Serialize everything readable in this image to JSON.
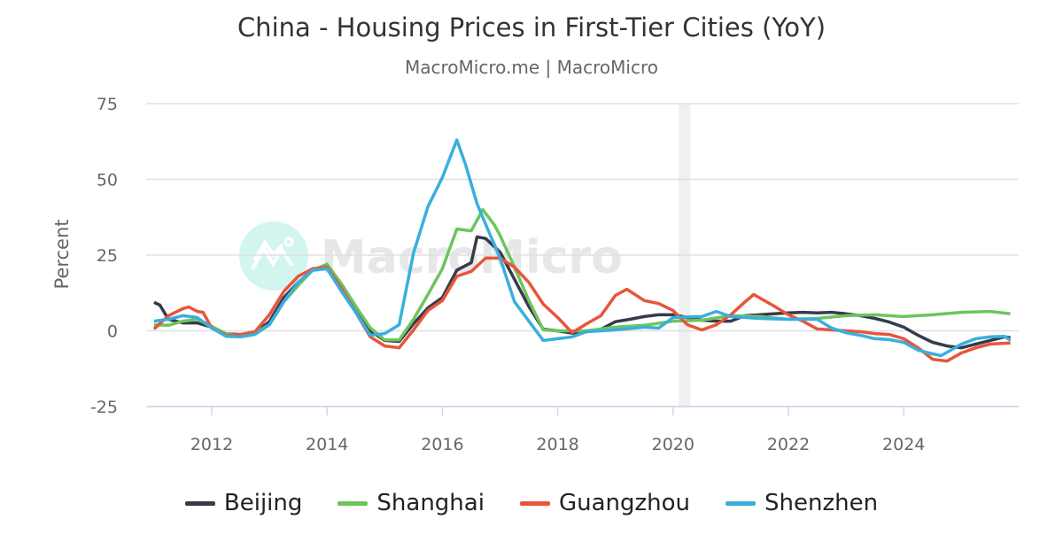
{
  "chart_data": {
    "type": "line",
    "title": "China - Housing Prices in First-Tier Cities (YoY)",
    "subtitle": "MacroMicro.me | MacroMicro",
    "watermark": "MacroMicro",
    "ylabel": "Percent",
    "xlabel": "",
    "ylim": [
      -25,
      75
    ],
    "xlim": [
      2011.0,
      2026.0
    ],
    "yticks": [
      "-25",
      "0",
      "25",
      "50",
      "75"
    ],
    "xticks": [
      "2012",
      "2014",
      "2016",
      "2018",
      "2020",
      "2022",
      "2024"
    ],
    "grid": true,
    "legend_position": "bottom",
    "shaded_region": [
      2020.1,
      2020.3
    ],
    "series": [
      {
        "name": "Beijing",
        "color": "#363b4b",
        "points": [
          [
            2011.0,
            9.4
          ],
          [
            2011.1,
            8.5
          ],
          [
            2011.25,
            3.8
          ],
          [
            2011.5,
            2.6
          ],
          [
            2011.75,
            2.6
          ],
          [
            2012.0,
            1.2
          ],
          [
            2012.25,
            -1
          ],
          [
            2012.5,
            -1.2
          ],
          [
            2012.75,
            -0.6
          ],
          [
            2013.0,
            3
          ],
          [
            2013.25,
            11
          ],
          [
            2013.5,
            16
          ],
          [
            2013.75,
            20
          ],
          [
            2014.0,
            21
          ],
          [
            2014.25,
            14
          ],
          [
            2014.5,
            7
          ],
          [
            2014.75,
            0
          ],
          [
            2015.0,
            -3.2
          ],
          [
            2015.25,
            -3.5
          ],
          [
            2015.5,
            2.3
          ],
          [
            2015.75,
            7.6
          ],
          [
            2016.0,
            11
          ],
          [
            2016.25,
            20
          ],
          [
            2016.5,
            22.5
          ],
          [
            2016.6,
            31
          ],
          [
            2016.75,
            30.5
          ],
          [
            2017.0,
            26
          ],
          [
            2017.25,
            17
          ],
          [
            2017.5,
            8
          ],
          [
            2017.75,
            0.5
          ],
          [
            2018.0,
            0
          ],
          [
            2018.25,
            -0.8
          ],
          [
            2018.5,
            -0.3
          ],
          [
            2018.75,
            0.5
          ],
          [
            2019.0,
            3
          ],
          [
            2019.25,
            3.8
          ],
          [
            2019.5,
            4.7
          ],
          [
            2019.75,
            5.3
          ],
          [
            2020.0,
            5.3
          ],
          [
            2020.25,
            4.4
          ],
          [
            2020.5,
            3.5
          ],
          [
            2020.75,
            3.2
          ],
          [
            2021.0,
            3.2
          ],
          [
            2021.25,
            5
          ],
          [
            2021.5,
            5.3
          ],
          [
            2021.75,
            5.6
          ],
          [
            2022.0,
            5.9
          ],
          [
            2022.25,
            6.1
          ],
          [
            2022.5,
            5.9
          ],
          [
            2022.75,
            6.1
          ],
          [
            2023.0,
            5.6
          ],
          [
            2023.25,
            5
          ],
          [
            2023.5,
            4.1
          ],
          [
            2023.75,
            2.9
          ],
          [
            2024.0,
            1.2
          ],
          [
            2024.25,
            -1.5
          ],
          [
            2024.5,
            -3.8
          ],
          [
            2024.75,
            -5
          ],
          [
            2025.0,
            -5.6
          ],
          [
            2025.25,
            -4.4
          ],
          [
            2025.5,
            -3.2
          ],
          [
            2025.75,
            -2
          ],
          [
            2025.85,
            -2.3
          ]
        ]
      },
      {
        "name": "Shanghai",
        "color": "#6cc55d",
        "points": [
          [
            2011.0,
            2
          ],
          [
            2011.25,
            1.8
          ],
          [
            2011.5,
            3.2
          ],
          [
            2011.75,
            3.8
          ],
          [
            2012.0,
            1.5
          ],
          [
            2012.25,
            -1
          ],
          [
            2012.5,
            -1.5
          ],
          [
            2012.75,
            -0.6
          ],
          [
            2013.0,
            2
          ],
          [
            2013.25,
            9.6
          ],
          [
            2013.5,
            15
          ],
          [
            2013.75,
            20
          ],
          [
            2014.0,
            22
          ],
          [
            2014.25,
            15.5
          ],
          [
            2014.5,
            8
          ],
          [
            2014.75,
            1
          ],
          [
            2015.0,
            -3
          ],
          [
            2015.25,
            -3
          ],
          [
            2015.5,
            3.8
          ],
          [
            2015.75,
            12
          ],
          [
            2016.0,
            20.5
          ],
          [
            2016.25,
            33.6
          ],
          [
            2016.5,
            33
          ],
          [
            2016.7,
            40
          ],
          [
            2016.9,
            35
          ],
          [
            2017.0,
            31.5
          ],
          [
            2017.25,
            21
          ],
          [
            2017.5,
            10
          ],
          [
            2017.75,
            0.3
          ],
          [
            2018.0,
            0
          ],
          [
            2018.5,
            0
          ],
          [
            2019.0,
            1.2
          ],
          [
            2019.5,
            1.8
          ],
          [
            2020.0,
            3.2
          ],
          [
            2020.5,
            3.5
          ],
          [
            2021.0,
            5
          ],
          [
            2021.5,
            4.7
          ],
          [
            2022.0,
            3.8
          ],
          [
            2022.5,
            4.1
          ],
          [
            2023.0,
            5
          ],
          [
            2023.5,
            5.3
          ],
          [
            2024.0,
            4.7
          ],
          [
            2024.5,
            5.3
          ],
          [
            2025.0,
            6.1
          ],
          [
            2025.5,
            6.4
          ],
          [
            2025.85,
            5.6
          ]
        ]
      },
      {
        "name": "Guangzhou",
        "color": "#e8553a",
        "points": [
          [
            2011.0,
            0.6
          ],
          [
            2011.25,
            5
          ],
          [
            2011.5,
            7.3
          ],
          [
            2011.6,
            7.9
          ],
          [
            2011.75,
            6.4
          ],
          [
            2011.85,
            6.1
          ],
          [
            2012.0,
            0.9
          ],
          [
            2012.25,
            -1.5
          ],
          [
            2012.5,
            -1.2
          ],
          [
            2012.75,
            -0.3
          ],
          [
            2013.0,
            5.3
          ],
          [
            2013.25,
            13
          ],
          [
            2013.5,
            18
          ],
          [
            2013.75,
            20.5
          ],
          [
            2014.0,
            21
          ],
          [
            2014.25,
            14
          ],
          [
            2014.5,
            6
          ],
          [
            2014.75,
            -2
          ],
          [
            2015.0,
            -5
          ],
          [
            2015.25,
            -5.6
          ],
          [
            2015.5,
            0.3
          ],
          [
            2015.75,
            6.7
          ],
          [
            2016.0,
            10
          ],
          [
            2016.25,
            18
          ],
          [
            2016.5,
            19.6
          ],
          [
            2016.75,
            24
          ],
          [
            2017.0,
            24
          ],
          [
            2017.25,
            21
          ],
          [
            2017.5,
            16
          ],
          [
            2017.75,
            8.8
          ],
          [
            2018.0,
            4.4
          ],
          [
            2018.25,
            -0.6
          ],
          [
            2018.5,
            2.3
          ],
          [
            2018.75,
            5
          ],
          [
            2019.0,
            11.7
          ],
          [
            2019.2,
            13.7
          ],
          [
            2019.5,
            10
          ],
          [
            2019.75,
            9
          ],
          [
            2020.0,
            6.7
          ],
          [
            2020.25,
            2
          ],
          [
            2020.5,
            0.3
          ],
          [
            2020.75,
            2
          ],
          [
            2021.0,
            5.3
          ],
          [
            2021.25,
            9.6
          ],
          [
            2021.4,
            12
          ],
          [
            2021.75,
            8.2
          ],
          [
            2022.0,
            5.3
          ],
          [
            2022.25,
            3.2
          ],
          [
            2022.5,
            0.6
          ],
          [
            2022.75,
            0.3
          ],
          [
            2023.0,
            0
          ],
          [
            2023.25,
            -0.3
          ],
          [
            2023.5,
            -0.9
          ],
          [
            2023.75,
            -1.2
          ],
          [
            2024.0,
            -2.6
          ],
          [
            2024.25,
            -5.6
          ],
          [
            2024.5,
            -9.4
          ],
          [
            2024.75,
            -10
          ],
          [
            2025.0,
            -7.3
          ],
          [
            2025.25,
            -5.6
          ],
          [
            2025.5,
            -4.4
          ],
          [
            2025.85,
            -4
          ]
        ]
      },
      {
        "name": "Shenzhen",
        "color": "#3aafdc",
        "points": [
          [
            2011.0,
            3.2
          ],
          [
            2011.25,
            3.8
          ],
          [
            2011.5,
            5
          ],
          [
            2011.75,
            4.4
          ],
          [
            2012.0,
            0.9
          ],
          [
            2012.25,
            -1.8
          ],
          [
            2012.5,
            -2
          ],
          [
            2012.75,
            -1.2
          ],
          [
            2013.0,
            2
          ],
          [
            2013.25,
            9.6
          ],
          [
            2013.5,
            16
          ],
          [
            2013.75,
            20
          ],
          [
            2014.0,
            20.5
          ],
          [
            2014.25,
            13
          ],
          [
            2014.5,
            6
          ],
          [
            2014.75,
            -1.5
          ],
          [
            2015.0,
            -0.9
          ],
          [
            2015.25,
            2
          ],
          [
            2015.5,
            25.7
          ],
          [
            2015.75,
            41
          ],
          [
            2016.0,
            50.6
          ],
          [
            2016.25,
            63
          ],
          [
            2016.4,
            55
          ],
          [
            2016.6,
            42
          ],
          [
            2016.85,
            30.7
          ],
          [
            2017.0,
            24
          ],
          [
            2017.25,
            9.6
          ],
          [
            2017.5,
            3.2
          ],
          [
            2017.75,
            -3.2
          ],
          [
            2018.0,
            -2.6
          ],
          [
            2018.25,
            -2
          ],
          [
            2018.5,
            -0.3
          ],
          [
            2019.0,
            0.3
          ],
          [
            2019.5,
            1.2
          ],
          [
            2019.75,
            0.9
          ],
          [
            2020.0,
            4.4
          ],
          [
            2020.5,
            4.7
          ],
          [
            2020.75,
            6.4
          ],
          [
            2021.0,
            4.7
          ],
          [
            2021.5,
            4.1
          ],
          [
            2022.0,
            3.8
          ],
          [
            2022.5,
            3.8
          ],
          [
            2022.75,
            0.9
          ],
          [
            2023.0,
            -0.6
          ],
          [
            2023.25,
            -1.5
          ],
          [
            2023.5,
            -2.6
          ],
          [
            2023.75,
            -2.9
          ],
          [
            2024.0,
            -3.8
          ],
          [
            2024.25,
            -6.4
          ],
          [
            2024.5,
            -7.6
          ],
          [
            2024.65,
            -8.2
          ],
          [
            2025.0,
            -4.4
          ],
          [
            2025.25,
            -2.6
          ],
          [
            2025.5,
            -2
          ],
          [
            2025.75,
            -1.8
          ],
          [
            2025.85,
            -3.2
          ]
        ]
      }
    ]
  }
}
